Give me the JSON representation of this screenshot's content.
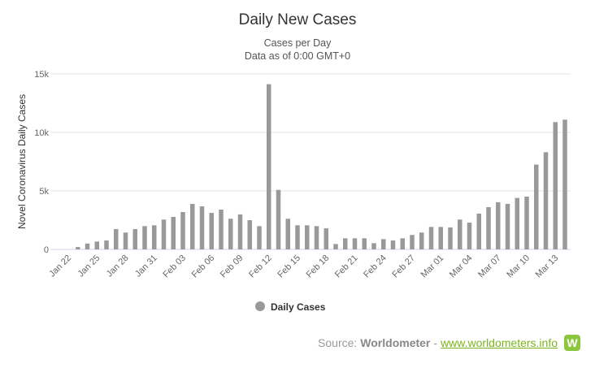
{
  "chart_data": {
    "type": "bar",
    "title": "Daily New Cases",
    "subtitle": [
      "Cases per Day",
      "Data as of 0:00 GMT+0"
    ],
    "xlabel": "",
    "ylabel": "Novel Coronavirus Daily Cases",
    "ylim": [
      0,
      15000
    ],
    "yticks": [
      0,
      5000,
      10000,
      15000
    ],
    "ytick_labels": [
      "0",
      "5k",
      "10k",
      "15k"
    ],
    "grid": true,
    "legend": {
      "position": "bottom-center",
      "entries": [
        "Daily Cases"
      ]
    },
    "color": "#999999",
    "categories": [
      "Jan 22",
      "Jan 23",
      "Jan 24",
      "Jan 25",
      "Jan 26",
      "Jan 27",
      "Jan 28",
      "Jan 29",
      "Jan 30",
      "Jan 31",
      "Feb 01",
      "Feb 02",
      "Feb 03",
      "Feb 04",
      "Feb 05",
      "Feb 06",
      "Feb 07",
      "Feb 08",
      "Feb 09",
      "Feb 10",
      "Feb 11",
      "Feb 12",
      "Feb 13",
      "Feb 14",
      "Feb 15",
      "Feb 16",
      "Feb 17",
      "Feb 18",
      "Feb 19",
      "Feb 20",
      "Feb 21",
      "Feb 22",
      "Feb 23",
      "Feb 24",
      "Feb 25",
      "Feb 26",
      "Feb 27",
      "Feb 28",
      "Feb 29",
      "Mar 01",
      "Mar 02",
      "Mar 03",
      "Mar 04",
      "Mar 05",
      "Mar 06",
      "Mar 07",
      "Mar 08",
      "Mar 09",
      "Mar 10",
      "Mar 11",
      "Mar 12",
      "Mar 13",
      "Mar 14"
    ],
    "values": [
      0,
      200,
      500,
      670,
      760,
      1740,
      1440,
      1740,
      1990,
      2060,
      2550,
      2780,
      3190,
      3890,
      3680,
      3120,
      3400,
      2620,
      2990,
      2500,
      1990,
      14120,
      5090,
      2620,
      2060,
      2060,
      1990,
      1800,
      460,
      950,
      950,
      950,
      530,
      880,
      760,
      950,
      1230,
      1440,
      1920,
      1920,
      1880,
      2550,
      2290,
      3060,
      3610,
      4030,
      3890,
      4400,
      4510,
      7250,
      8310,
      10880,
      11090
    ],
    "xtick_labels": [
      "Jan 22",
      "Jan 25",
      "Jan 28",
      "Jan 31",
      "Feb 03",
      "Feb 06",
      "Feb 09",
      "Feb 12",
      "Feb 15",
      "Feb 18",
      "Feb 21",
      "Feb 24",
      "Feb 27",
      "Mar 01",
      "Mar 04",
      "Mar 07",
      "Mar 10",
      "Mar 13"
    ]
  },
  "footer": {
    "source_label": "Source:",
    "source_name": "Worldometer",
    "separator": "-",
    "link": "www.worldometers.info",
    "logo_letter": "W"
  }
}
